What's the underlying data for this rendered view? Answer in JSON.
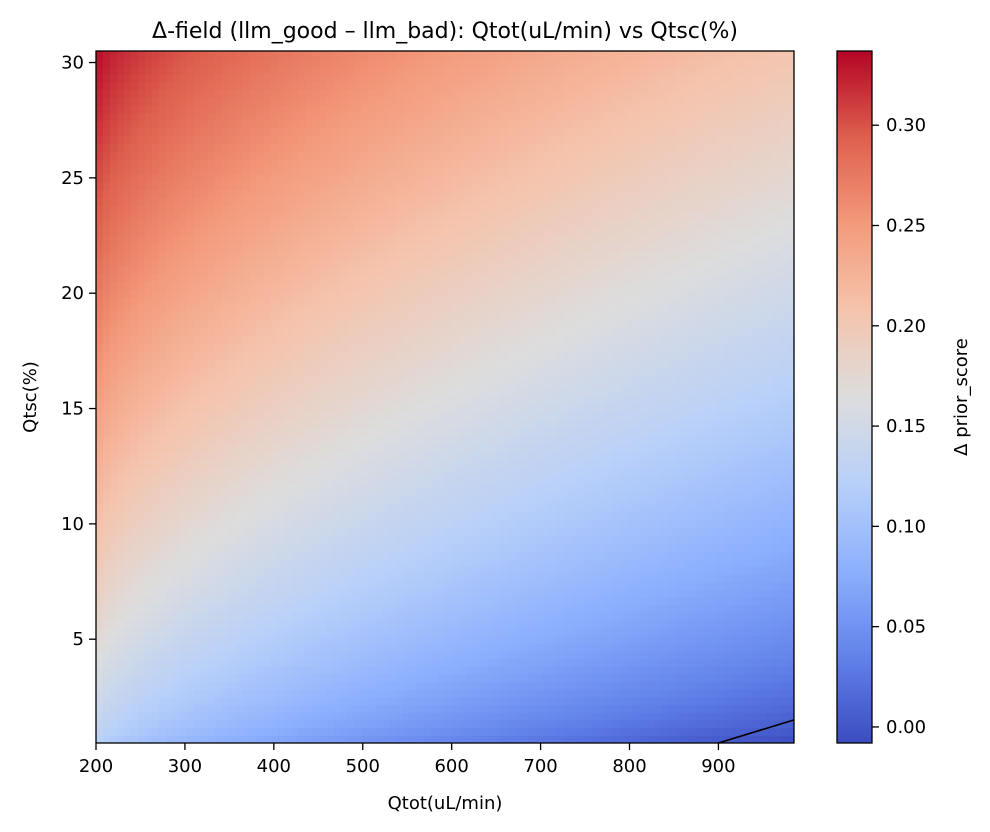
{
  "chart_data": {
    "type": "heatmap",
    "title": "Δ-field (llm_good – llm_bad): Qtot(uL/min) vs Qtsc(%)",
    "xlabel": "Qtot(uL/min)",
    "ylabel": "Qtsc(%)",
    "xlim": [
      200,
      985
    ],
    "ylim": [
      0.5,
      30.5
    ],
    "xticks": [
      200,
      300,
      400,
      500,
      600,
      700,
      800,
      900
    ],
    "yticks": [
      5,
      10,
      15,
      20,
      25,
      30
    ],
    "colormap": "coolwarm",
    "colorbar": {
      "label": "Δ prior_score",
      "range": [
        -0.008,
        0.337
      ],
      "ticks": [
        0.0,
        0.05,
        0.1,
        0.15,
        0.2,
        0.25,
        0.3
      ],
      "tick_labels": [
        "0.00",
        "0.05",
        "0.10",
        "0.15",
        "0.20",
        "0.25",
        "0.30"
      ]
    },
    "corner_values": {
      "x_min_y_max": 0.337,
      "x_max_y_max": 0.205,
      "x_min_y_min": 0.125,
      "x_max_y_min": -0.008
    },
    "zero_contour": {
      "points": [
        [
          900,
          0.5
        ],
        [
          985,
          1.5
        ]
      ]
    },
    "grid": false
  }
}
